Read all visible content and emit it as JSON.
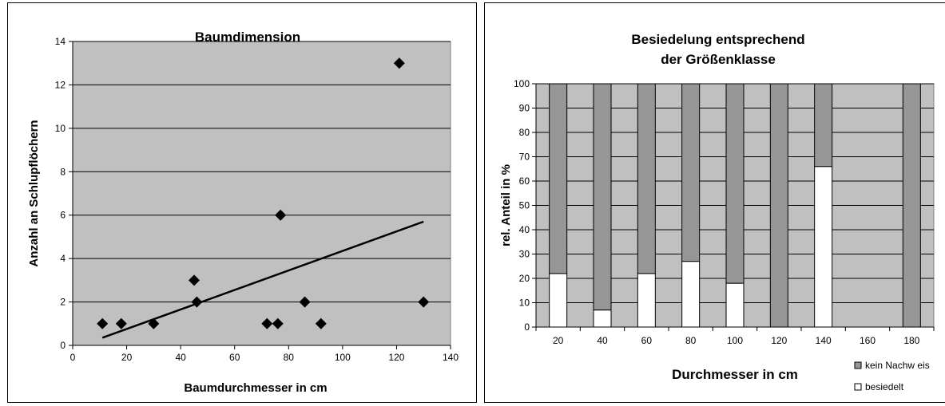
{
  "chart_data": [
    {
      "type": "scatter",
      "title": "Baumdimension",
      "xlabel": "Baumdurchmesser in cm",
      "ylabel": "Anzahl an Schlupflöchern",
      "xlim": [
        0,
        140
      ],
      "ylim": [
        0,
        14
      ],
      "xticks": [
        "0",
        "20",
        "40",
        "60",
        "80",
        "100",
        "120",
        "140"
      ],
      "yticks": [
        "0",
        "2",
        "4",
        "6",
        "8",
        "10",
        "12",
        "14"
      ],
      "grid": true,
      "points": [
        {
          "x": 11,
          "y": 1
        },
        {
          "x": 18,
          "y": 1
        },
        {
          "x": 30,
          "y": 1
        },
        {
          "x": 45,
          "y": 3
        },
        {
          "x": 46,
          "y": 2
        },
        {
          "x": 72,
          "y": 1
        },
        {
          "x": 76,
          "y": 1
        },
        {
          "x": 77,
          "y": 6
        },
        {
          "x": 86,
          "y": 2
        },
        {
          "x": 92,
          "y": 1
        },
        {
          "x": 121,
          "y": 13
        },
        {
          "x": 130,
          "y": 2
        }
      ],
      "trendline": {
        "x": [
          11,
          130
        ],
        "y": [
          0.35,
          5.7
        ]
      },
      "marker_color": "#000000",
      "plot_background": "#c0c0c0"
    },
    {
      "type": "bar",
      "stacked": true,
      "title": "Besiedelung entsprechend der Größenklasse",
      "title_lines": [
        "Besiedelung entsprechend",
        "der Größenklasse"
      ],
      "xlabel": "Durchmesser in cm",
      "ylabel": "rel. Anteil in %",
      "categories": [
        "20",
        "40",
        "60",
        "80",
        "100",
        "120",
        "140",
        "160",
        "180"
      ],
      "yticks": [
        "0",
        "10",
        "20",
        "30",
        "40",
        "50",
        "60",
        "70",
        "80",
        "90",
        "100"
      ],
      "ylim": [
        0,
        100
      ],
      "grid": true,
      "series": [
        {
          "name": "besiedelt",
          "values": [
            22,
            7,
            22,
            27,
            18,
            0,
            66,
            0,
            0
          ],
          "color": "#ffffff"
        },
        {
          "name": "kein Nachw eis",
          "values": [
            78,
            93,
            78,
            73,
            82,
            100,
            34,
            0,
            100
          ],
          "color": "#969696"
        }
      ],
      "legend": "bottom-right",
      "plot_background": "#c0c0c0"
    }
  ]
}
